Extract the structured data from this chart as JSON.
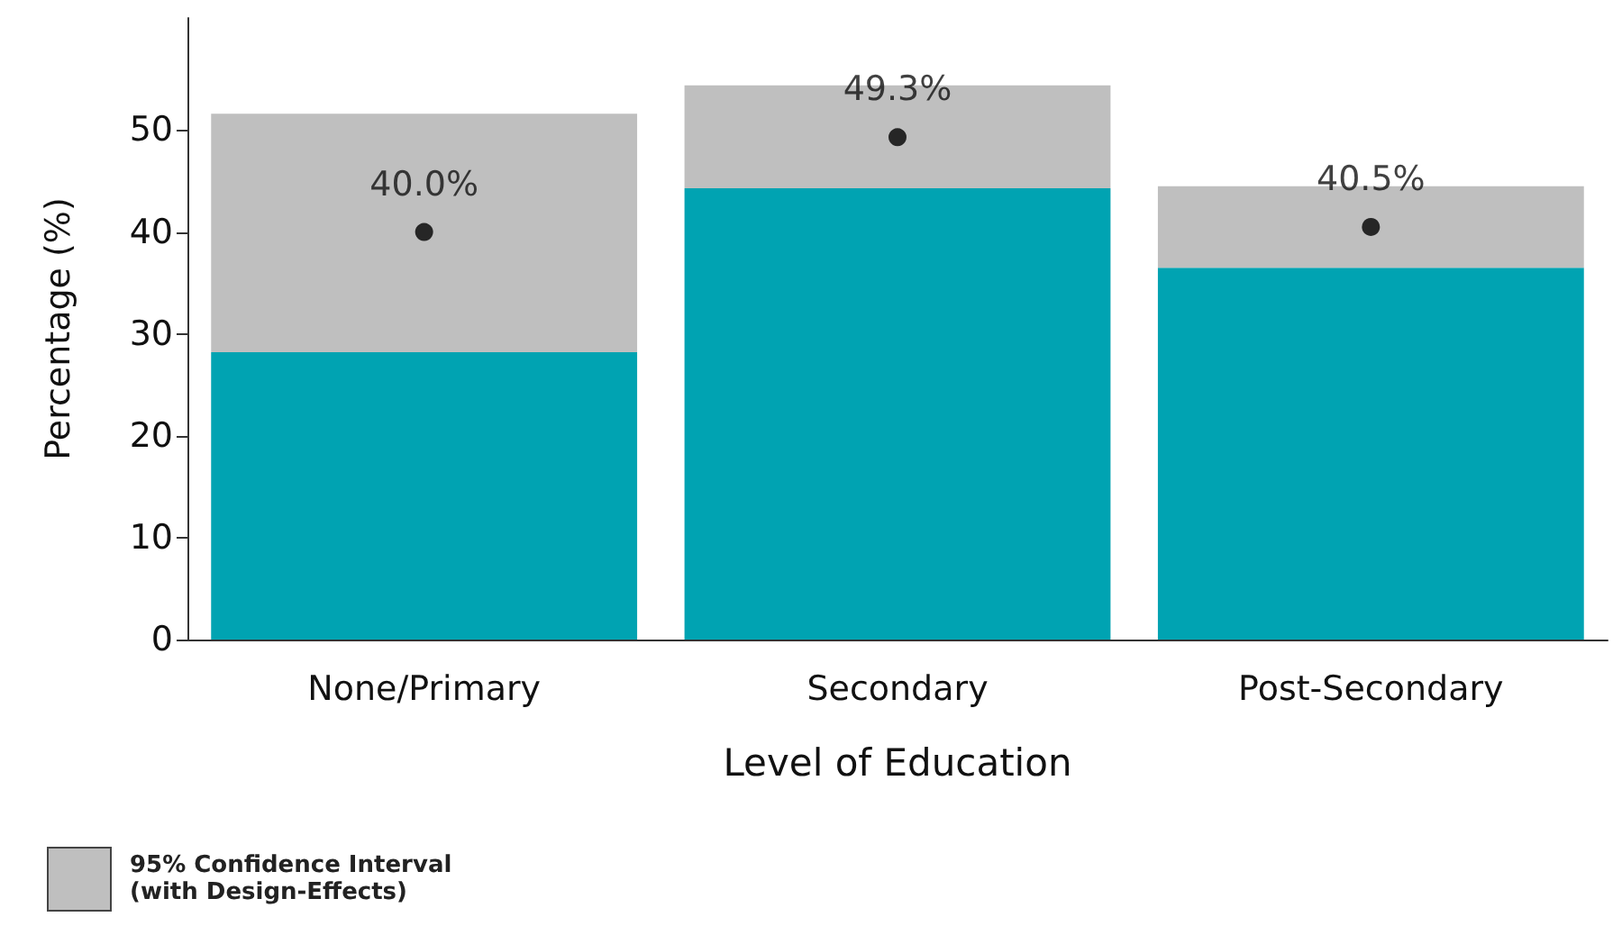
{
  "chart_data": {
    "type": "bar",
    "stacked": true,
    "xlabel": "Level of Education",
    "ylabel": "Percentage (%)",
    "categories": [
      "None/Primary",
      "Secondary",
      "Post-Secondary"
    ],
    "series": [
      {
        "color": "#00a3b2",
        "values": [
          28.2,
          44.3,
          36.5
        ]
      },
      {
        "name": "95% Confidence Interval (with Design-Effects)",
        "color": "#bfbfbf",
        "values": [
          23.4,
          10.1,
          8.0
        ]
      },
      {
        "type": "scatter",
        "color": "#000000",
        "x": [
          "None/Primary",
          "Secondary",
          "Post-Secondary"
        ],
        "values": [
          40.0,
          49.3,
          40.5
        ],
        "value_labels": [
          "40.0%",
          "49.3%",
          "40.5%"
        ]
      }
    ],
    "ylim": [
      0,
      61
    ],
    "yticks": [
      0,
      10,
      20,
      30,
      40,
      50
    ],
    "grid": false,
    "legend": "bottom left",
    "marker": "circle"
  }
}
